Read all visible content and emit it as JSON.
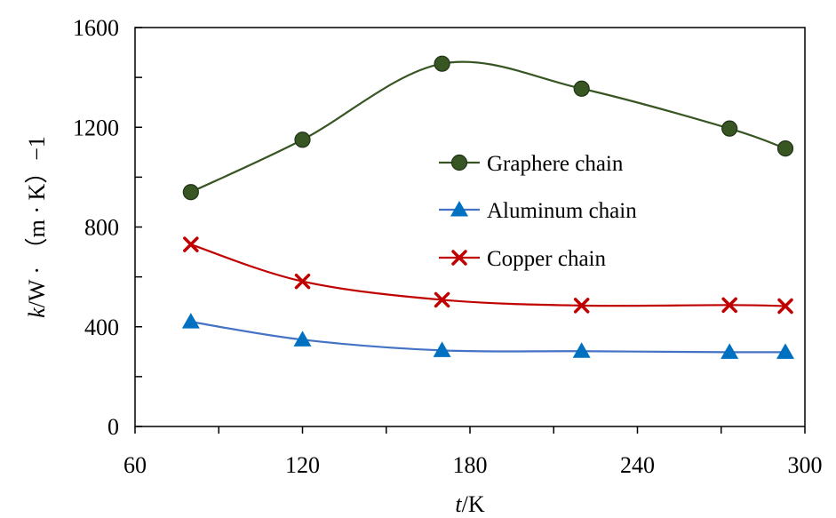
{
  "chart_data": {
    "type": "line",
    "xlabel_italic": "t",
    "xlabel_rest": "/K",
    "ylabel_italic": "k",
    "ylabel_rest": "/W · （m · K）−1",
    "xlim": [
      60,
      300
    ],
    "ylim": [
      0,
      1600
    ],
    "xticks": [
      60,
      120,
      180,
      240,
      300
    ],
    "yticks": [
      0,
      400,
      800,
      1200,
      1600
    ],
    "grid": false,
    "legend_position": "upper-right-inside",
    "series": [
      {
        "name": "Graphere chain",
        "marker": "circle",
        "color": "#375623",
        "x": [
          80,
          120,
          170,
          220,
          273,
          293
        ],
        "y": [
          940,
          1150,
          1455,
          1355,
          1195,
          1115
        ]
      },
      {
        "name": "Aluminum chain",
        "marker": "triangle",
        "color": "#0070C0",
        "line_color": "#4472C4",
        "x": [
          80,
          120,
          170,
          220,
          273,
          293
        ],
        "y": [
          420,
          348,
          305,
          302,
          298,
          298
        ]
      },
      {
        "name": "Copper chain",
        "marker": "cross",
        "color": "#C00000",
        "x": [
          80,
          120,
          170,
          220,
          273,
          293
        ],
        "y": [
          730,
          582,
          508,
          485,
          487,
          483
        ]
      }
    ]
  }
}
